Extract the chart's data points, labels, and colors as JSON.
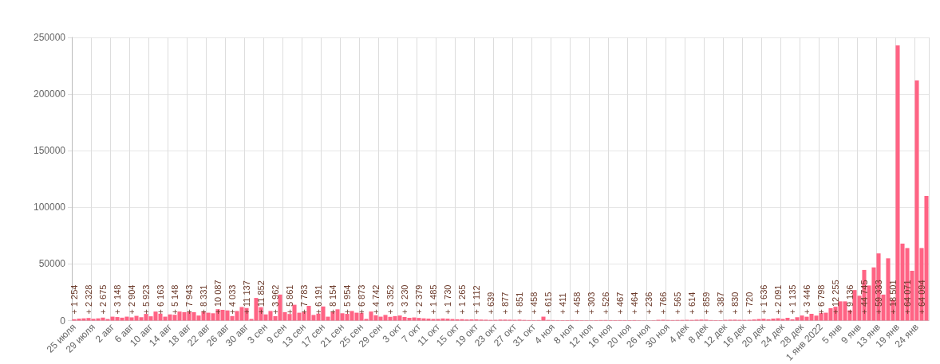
{
  "chart_data": {
    "type": "bar",
    "categories": [
      "25 июля",
      null,
      null,
      null,
      "29 июля",
      null,
      null,
      null,
      "2 авг",
      null,
      null,
      null,
      "6 авг",
      null,
      null,
      null,
      "10 авг",
      null,
      null,
      null,
      "14 авг",
      null,
      null,
      null,
      "18 авг",
      null,
      null,
      null,
      "22 авг",
      null,
      null,
      null,
      "26 авг",
      null,
      null,
      null,
      "30 авг",
      null,
      null,
      null,
      "3 сен",
      null,
      null,
      null,
      "9 сен",
      null,
      null,
      null,
      "13 сен",
      null,
      null,
      null,
      "17 сен",
      null,
      null,
      null,
      "21 сен",
      null,
      null,
      null,
      "25 сен",
      null,
      null,
      null,
      "29 сен",
      null,
      null,
      null,
      "3 окт",
      null,
      null,
      null,
      "7 окт",
      null,
      null,
      null,
      "11 окт",
      null,
      null,
      null,
      "15 окт",
      null,
      null,
      null,
      "19 окт",
      null,
      null,
      null,
      "23 окт",
      null,
      null,
      null,
      "27 окт",
      null,
      null,
      null,
      "31 окт",
      null,
      null,
      null,
      "4 ноя",
      null,
      null,
      null,
      "8 ноя",
      null,
      null,
      null,
      "12 ноя",
      null,
      null,
      null,
      "16 ноя",
      null,
      null,
      null,
      "20 ноя",
      null,
      null,
      null,
      "26 ноя",
      null,
      null,
      null,
      "30 ноя",
      null,
      null,
      null,
      "4 дек",
      null,
      null,
      null,
      "8 дек",
      null,
      null,
      null,
      "12 дек",
      null,
      null,
      null,
      "16 дек",
      null,
      null,
      null,
      "20 дек",
      null,
      null,
      null,
      "24 дек",
      null,
      null,
      null,
      "28 дек",
      null,
      null,
      null,
      "1 янв 2022",
      null,
      null,
      null,
      "5 янв",
      null,
      null,
      null,
      "9 янв",
      null,
      null,
      null,
      "13 янв",
      null,
      null,
      null,
      "19 янв",
      null,
      null,
      null,
      "24 янв",
      null,
      null
    ],
    "values": [
      1254,
      1800,
      2000,
      2328,
      1600,
      2000,
      2675,
      1400,
      3500,
      3148,
      2600,
      3500,
      2904,
      4200,
      3000,
      5923,
      3800,
      8000,
      6163,
      3500,
      5500,
      5148,
      8000,
      7500,
      7943,
      7500,
      4500,
      8331,
      7000,
      6500,
      10087,
      9500,
      9000,
      4033,
      8500,
      12000,
      11137,
      1500,
      20000,
      11852,
      5500,
      8500,
      3962,
      23000,
      7500,
      5861,
      14000,
      7000,
      7783,
      13000,
      5000,
      6191,
      12500,
      3500,
      8154,
      10000,
      6500,
      5954,
      8500,
      7000,
      6873,
      1500,
      8000,
      4742,
      3500,
      5000,
      3352,
      4000,
      4500,
      3230,
      2500,
      2800,
      2379,
      2000,
      1800,
      1485,
      1500,
      1900,
      1730,
      1400,
      1200,
      1265,
      1000,
      1100,
      1112,
      900,
      800,
      639,
      700,
      900,
      877,
      800,
      700,
      851,
      600,
      500,
      458,
      500,
      3500,
      615,
      500,
      450,
      411,
      400,
      500,
      458,
      350,
      300,
      303,
      400,
      500,
      526,
      450,
      400,
      467,
      450,
      400,
      464,
      300,
      250,
      236,
      300,
      700,
      766,
      600,
      500,
      565,
      600,
      700,
      614,
      800,
      900,
      859,
      500,
      400,
      387,
      700,
      800,
      830,
      700,
      650,
      720,
      1000,
      1400,
      1636,
      1200,
      1800,
      2091,
      1500,
      2500,
      1135,
      3000,
      4500,
      3446,
      6000,
      4500,
      6798,
      7000,
      11000,
      12255,
      17000,
      17000,
      9136,
      27000,
      22000,
      44745,
      31000,
      47000,
      59333,
      23000,
      55000,
      18501,
      243000,
      68000,
      64071,
      44000,
      212000,
      64094,
      110000
    ],
    "value_labels": [
      "+ 1 254",
      null,
      null,
      "+ 2 328",
      null,
      null,
      "+ 2 675",
      null,
      null,
      "+ 3 148",
      null,
      null,
      "+ 2 904",
      null,
      null,
      "+ 5 923",
      null,
      null,
      "+ 6 163",
      null,
      null,
      "+ 5 148",
      null,
      null,
      "+ 7 943",
      null,
      null,
      "+ 8 331",
      null,
      null,
      "+ 10 087",
      null,
      null,
      "+ 4 033",
      null,
      null,
      "+ 11 137",
      null,
      null,
      "+ 11 852",
      null,
      null,
      "+ 3 962",
      null,
      null,
      "+ 5 861",
      null,
      null,
      "+ 7 783",
      null,
      null,
      "+ 6 191",
      null,
      null,
      "+ 8 154",
      null,
      null,
      "+ 5 954",
      null,
      null,
      "+ 6 873",
      null,
      null,
      "+ 4 742",
      null,
      null,
      "+ 3 352",
      null,
      null,
      "+ 3 230",
      null,
      null,
      "+ 2 379",
      null,
      null,
      "+ 1 485",
      null,
      null,
      "+ 1 730",
      null,
      null,
      "+ 1 265",
      null,
      null,
      "+ 1 112",
      null,
      null,
      "+ 639",
      null,
      null,
      "+ 877",
      null,
      null,
      "+ 851",
      null,
      null,
      "+ 458",
      null,
      null,
      "+ 615",
      null,
      null,
      "+ 411",
      null,
      null,
      "+ 458",
      null,
      null,
      "+ 303",
      null,
      null,
      "+ 526",
      null,
      null,
      "+ 467",
      null,
      null,
      "+ 464",
      null,
      null,
      "+ 236",
      null,
      null,
      "+ 766",
      null,
      null,
      "+ 565",
      null,
      null,
      "+ 614",
      null,
      null,
      "+ 859",
      null,
      null,
      "+ 387",
      null,
      null,
      "+ 830",
      null,
      null,
      "+ 720",
      null,
      null,
      "+ 1 636",
      null,
      null,
      "+ 2 091",
      null,
      null,
      "+ 1 135",
      null,
      null,
      "+ 3 446",
      null,
      null,
      "+ 6 798",
      null,
      null,
      "+ 12 255",
      null,
      null,
      "+ 9 136",
      null,
      null,
      "+ 44 745",
      null,
      null,
      "+ 59 333",
      null,
      null,
      "+ 18 501",
      null,
      null,
      "+ 64 071",
      null,
      null,
      "+ 64 094",
      null
    ],
    "color": "#ff6384",
    "ylim": [
      0,
      250000
    ],
    "yticks": [
      0,
      50000,
      100000,
      150000,
      200000,
      250000
    ],
    "grid": true
  }
}
